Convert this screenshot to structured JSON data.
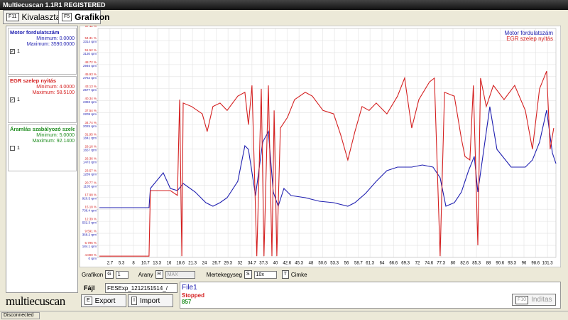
{
  "window": {
    "title": "Multiecuscan 1.1R1 REGISTERED"
  },
  "tabs": [
    {
      "key": "F11",
      "label": "Kivalasztas"
    },
    {
      "key": "F5",
      "label": "Grafikon"
    }
  ],
  "parameters": [
    {
      "name": "Motor fordulatszám",
      "color": "#1f1fb0",
      "minimum": "Minimum: 0.0000",
      "maximum": "Maximum: 3590.0000",
      "checked": true,
      "scale": "1"
    },
    {
      "name": "EGR szelep nyitás",
      "color": "#d42020",
      "minimum": "Minimum: 4.0000",
      "maximum": "Maximum: 58.5100",
      "checked": true,
      "scale": "1"
    },
    {
      "name": "Áramlás szabályozó szelep nyitás",
      "color": "#1e8c1e",
      "minimum": "Minimum: 5.0000",
      "maximum": "Maximum: 92.1400",
      "checked": false,
      "scale": "1"
    }
  ],
  "chart_data": {
    "type": "line",
    "grid": true,
    "legend": "top-right",
    "xlim": [
      0,
      103.2
    ],
    "xticks": [
      2.7,
      5.3,
      8.0,
      10.7,
      13.3,
      16.0,
      18.6,
      21.3,
      24.0,
      26.7,
      29.3,
      32.0,
      34.7,
      37.3,
      40.0,
      42.6,
      45.3,
      48.0,
      50.6,
      53.3,
      56.0,
      58.7,
      61.3,
      64.0,
      66.6,
      69.3,
      72.0,
      74.6,
      77.3,
      80.0,
      82.6,
      85.3,
      88.0,
      90.6,
      93.3,
      96.0,
      98.6,
      101.3
    ],
    "ylim": [
      0,
      3498
    ],
    "yticks": [
      {
        "value": 0,
        "label": "0 rpm"
      },
      {
        "value": 184.1,
        "label": "184.1 rpm"
      },
      {
        "value": 368.2,
        "label": "368.2 rpm"
      },
      {
        "value": 552.3,
        "label": "552.3 rpm"
      },
      {
        "value": 736.4,
        "label": "736.4 rpm"
      },
      {
        "value": 920.5,
        "label": "920.5 rpm"
      },
      {
        "value": 1105,
        "label": "1105 rpm"
      },
      {
        "value": 1289,
        "label": "1289 rpm"
      },
      {
        "value": 1473,
        "label": "1473 rpm"
      },
      {
        "value": 1657,
        "label": "1657 rpm"
      },
      {
        "value": 1841,
        "label": "1841 rpm"
      },
      {
        "value": 2025,
        "label": "2025 rpm"
      },
      {
        "value": 2209,
        "label": "2209 rpm"
      },
      {
        "value": 2393,
        "label": "2393 rpm"
      },
      {
        "value": 2577,
        "label": "2577 rpm"
      },
      {
        "value": 2762,
        "label": "2762 rpm"
      },
      {
        "value": 2946,
        "label": "2946 rpm"
      },
      {
        "value": 3130,
        "label": "3130 rpm"
      },
      {
        "value": 3314,
        "label": "3314 rpm"
      }
    ],
    "y2lim": [
      4.0,
      57.11
    ],
    "y2ticks": [
      {
        "value": 4.0,
        "label": "4.000 %"
      },
      {
        "value": 6.796,
        "label": "6.796 %"
      },
      {
        "value": 9.591,
        "label": "9.591 %"
      },
      {
        "value": 12.39,
        "label": "12.39 %"
      },
      {
        "value": 15.18,
        "label": "15.18 %"
      },
      {
        "value": 17.98,
        "label": "17.98 %"
      },
      {
        "value": 20.77,
        "label": "20.77 %"
      },
      {
        "value": 23.57,
        "label": "23.57 %"
      },
      {
        "value": 26.36,
        "label": "26.36 %"
      },
      {
        "value": 29.16,
        "label": "29.16 %"
      },
      {
        "value": 31.95,
        "label": "31.95 %"
      },
      {
        "value": 34.74,
        "label": "34.74 %"
      },
      {
        "value": 37.54,
        "label": "37.54 %"
      },
      {
        "value": 40.34,
        "label": "40.34 %"
      },
      {
        "value": 43.13,
        "label": "43.13 %"
      },
      {
        "value": 45.93,
        "label": "45.93 %"
      },
      {
        "value": 48.72,
        "label": "48.72 %"
      },
      {
        "value": 51.52,
        "label": "51.52 %"
      },
      {
        "value": 54.31,
        "label": "54.31 %"
      },
      {
        "value": 57.11,
        "label": "57.11 %"
      }
    ],
    "series": [
      {
        "name": "Motor fordulatszám",
        "color": "#1f1fb0",
        "x": [
          0.3,
          11.5,
          11.8,
          14.7,
          16.3,
          17.9,
          19.2,
          21.9,
          24.3,
          25.9,
          27.5,
          29.1,
          31.5,
          33.1,
          33.9,
          35.5,
          37.1,
          38.4,
          39.5,
          40.6,
          41.9,
          43.5,
          46.7,
          49.9,
          53.1,
          56.3,
          57.9,
          60.3,
          62.7,
          65.1,
          67.5,
          70.7,
          73.1,
          75.5,
          77.1,
          78.4,
          80.3,
          81.9,
          83.5,
          84.8,
          85.6,
          88.3,
          89.9,
          93.1,
          96.3,
          97.9,
          99.5,
          101.1,
          102.4,
          103.2
        ],
        "values": [
          760,
          760,
          1054,
          1293,
          1054,
          1021,
          1130,
          999,
          836,
          782,
          836,
          912,
          1162,
          1706,
          1651,
          945,
          1760,
          1923,
          999,
          782,
          1054,
          945,
          912,
          858,
          836,
          782,
          836,
          978,
          1162,
          1325,
          1380,
          1380,
          1412,
          1380,
          1217,
          782,
          836,
          999,
          1325,
          1543,
          999,
          2303,
          1651,
          1380,
          1380,
          1488,
          1760,
          2249,
          1597,
          1434
        ]
      },
      {
        "name": "EGR szelep nyitás",
        "color": "#d42020",
        "axis": "y2",
        "x": [
          0.3,
          11.5,
          11.8,
          16.3,
          17.9,
          18.4,
          18.9,
          19.2,
          21.1,
          23.5,
          24.6,
          25.9,
          27.5,
          29.1,
          31.5,
          33.1,
          33.9,
          34.7,
          35.8,
          36.8,
          37.4,
          38.4,
          39.2,
          39.7,
          40.3,
          41.1,
          42.7,
          44.3,
          46.7,
          48.3,
          50.7,
          53.1,
          54.7,
          56.3,
          57.9,
          59.5,
          61.1,
          62.7,
          65.1,
          67.5,
          69.1,
          70.7,
          72.3,
          74.7,
          75.8,
          77.1,
          78.1,
          80.3,
          81.9,
          82.7,
          83.8,
          84.6,
          85.6,
          86.2,
          87.5,
          89.1,
          91.5,
          93.9,
          96.3,
          97.9,
          99.5,
          101.1,
          101.9,
          102.7
        ],
        "values": [
          4.3,
          4.3,
          19.5,
          19.5,
          18.4,
          40.6,
          4.3,
          39.8,
          39.0,
          37.3,
          33.2,
          39.0,
          39.8,
          38.1,
          41.4,
          42.3,
          34.8,
          43.9,
          4.3,
          43.1,
          4.3,
          43.9,
          4.3,
          38.1,
          4.3,
          34.0,
          36.5,
          40.6,
          42.3,
          41.4,
          38.1,
          37.3,
          32.4,
          26.6,
          33.2,
          39.0,
          38.1,
          39.8,
          37.3,
          41.4,
          45.6,
          34.0,
          40.6,
          44.7,
          45.6,
          4.3,
          42.3,
          41.4,
          31.5,
          27.4,
          26.6,
          43.9,
          6.8,
          45.6,
          39.0,
          43.9,
          40.6,
          43.9,
          38.1,
          29.1,
          43.1,
          47.2,
          29.1,
          34.0
        ]
      }
    ]
  },
  "controls": {
    "graph_label": "Grafikon",
    "graph_key": "G",
    "graph_value": "1",
    "ratio_label": "Arany",
    "ratio_key": "R",
    "ratio_value": "MAX",
    "unit_label": "Mertekegyseg",
    "unit_key": "S",
    "unit_value": "10x",
    "tag_key": "T",
    "tag_label": "Cimke"
  },
  "file": {
    "label": "Fájl",
    "value": "FESExp_1212151514_/",
    "export_key": "E",
    "export": "Export",
    "import_key": "I",
    "import": "Import",
    "name": "File1",
    "state": "Stopped",
    "count": "857",
    "start_key": "F10",
    "start": "Inditas"
  },
  "logo": "multiecuscan",
  "status": "Disconnected"
}
